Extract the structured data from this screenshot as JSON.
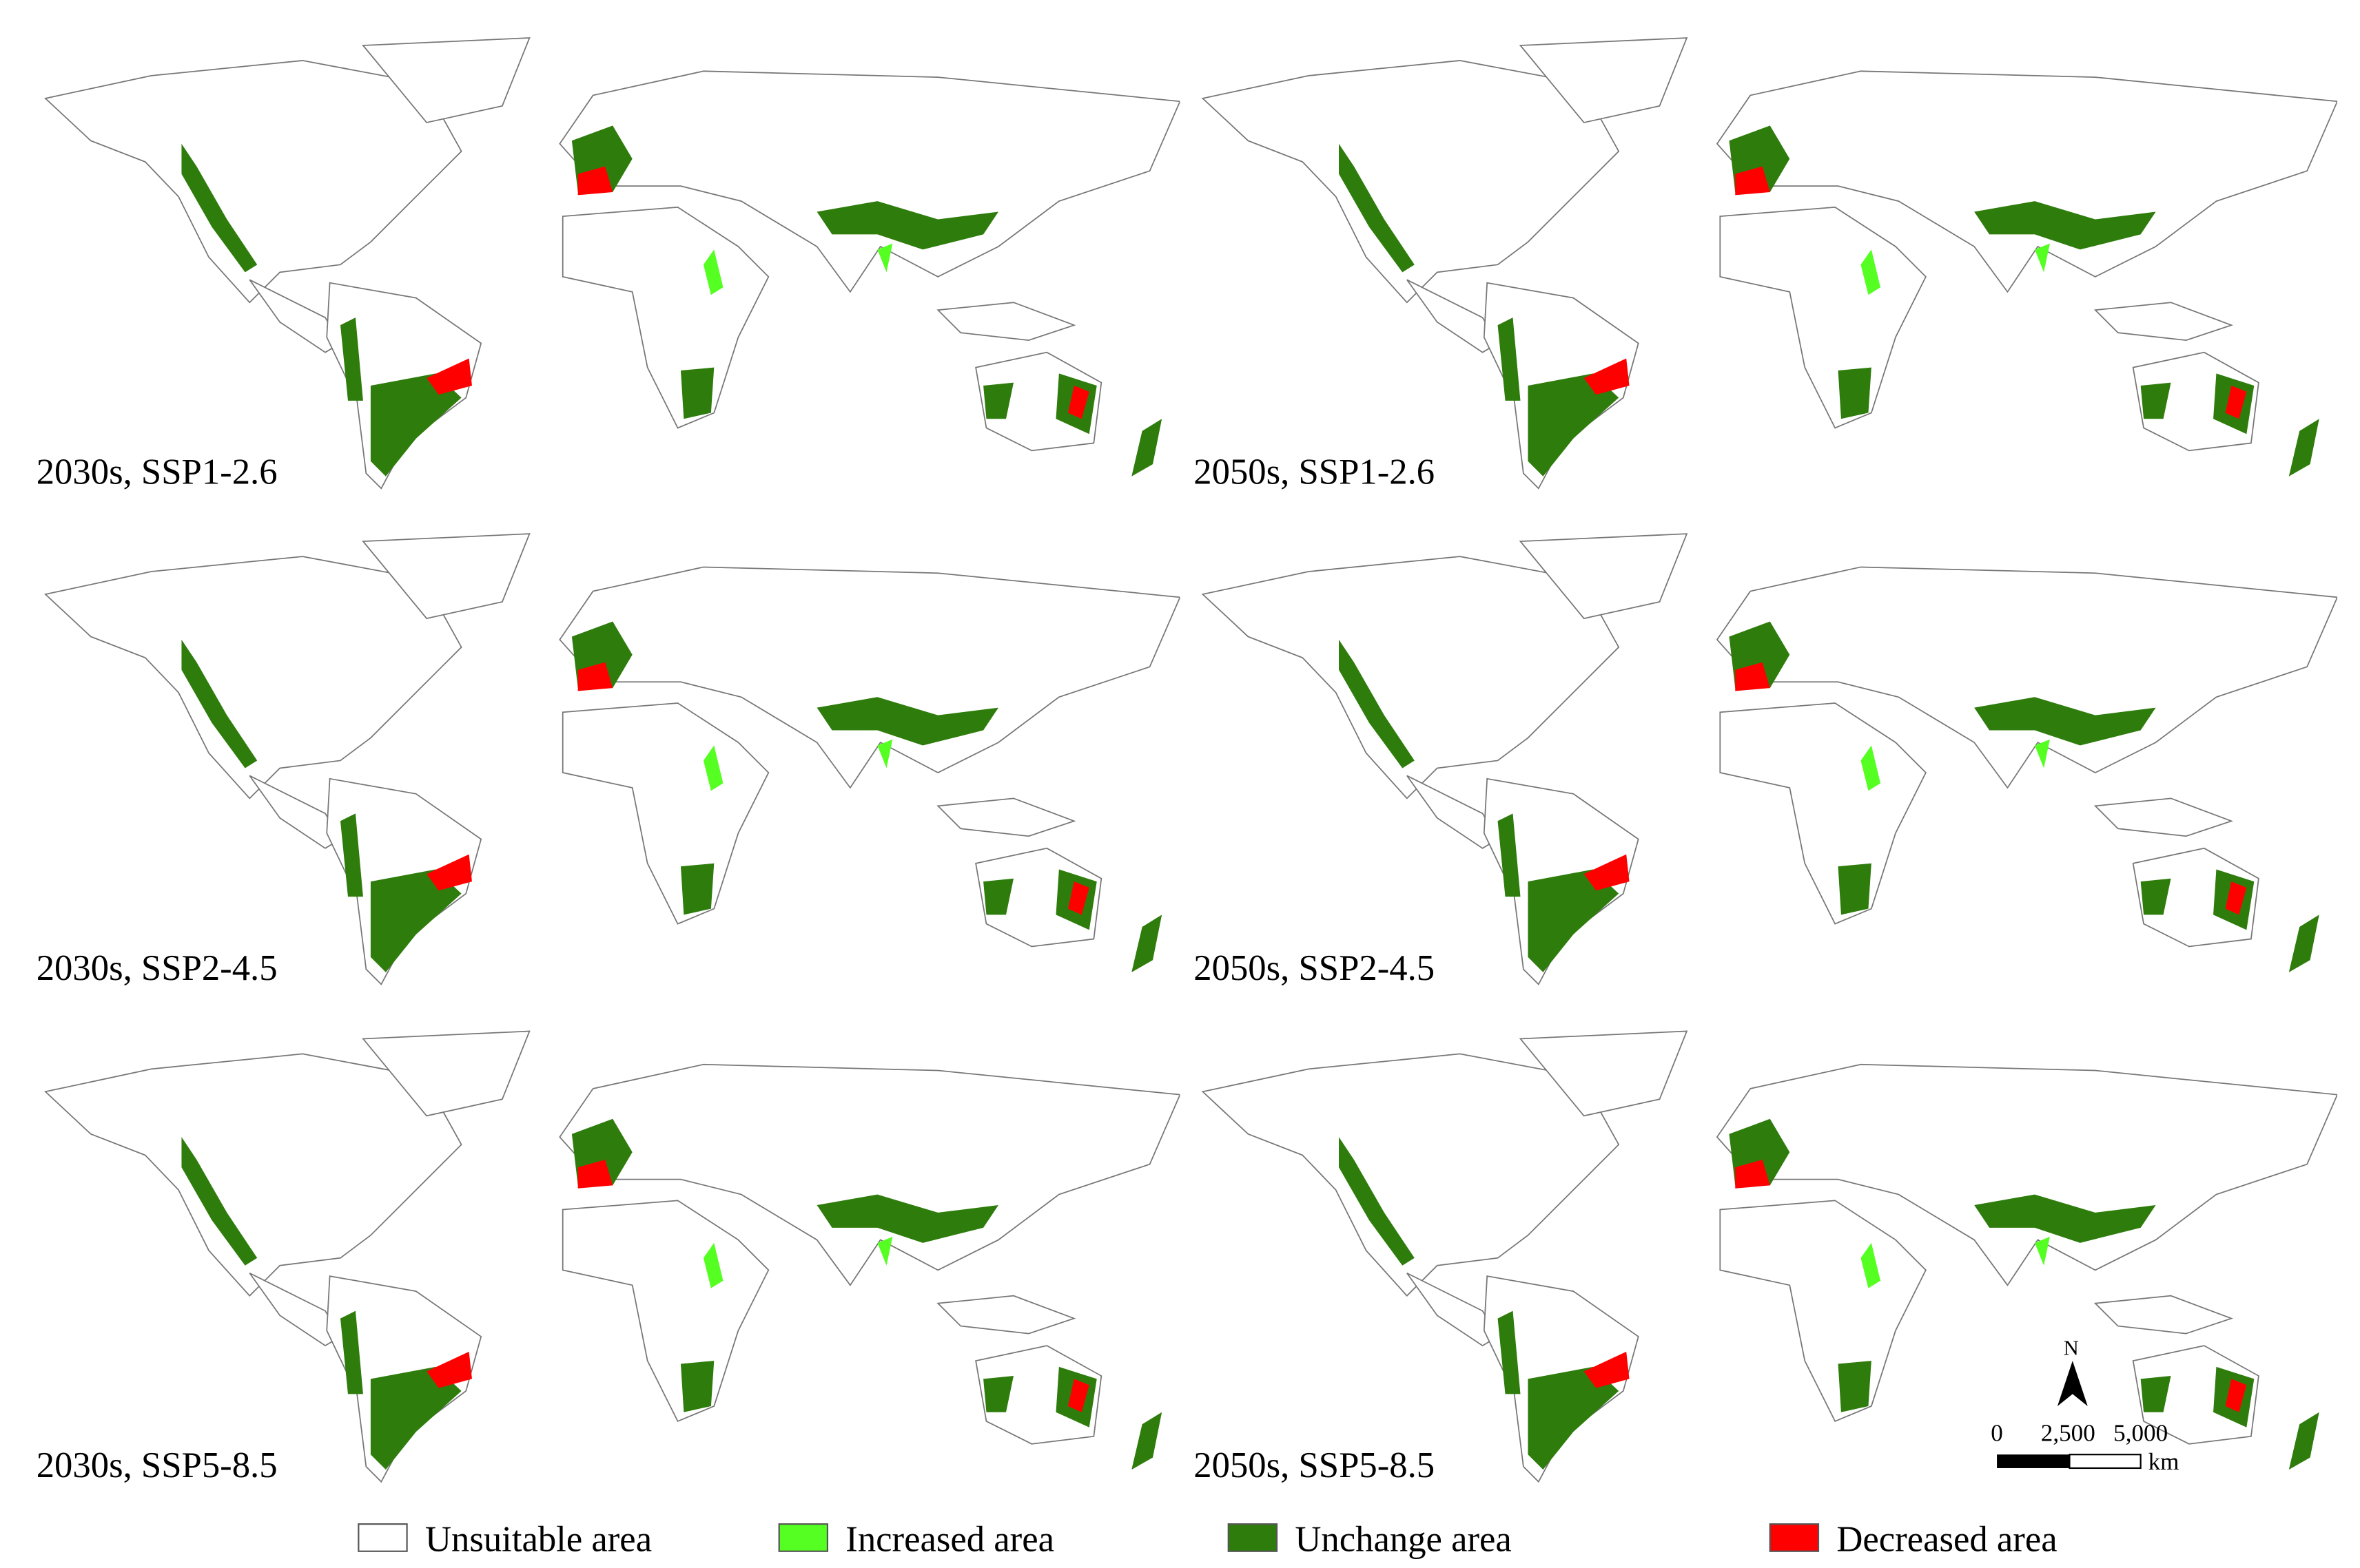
{
  "panels": [
    {
      "label": "2030s, SSP1-2.6"
    },
    {
      "label": "2050s, SSP1-2.6"
    },
    {
      "label": "2030s, SSP2-4.5"
    },
    {
      "label": "2050s, SSP2-4.5"
    },
    {
      "label": "2030s, SSP5-8.5"
    },
    {
      "label": "2050s, SSP5-8.5"
    }
  ],
  "legend": [
    {
      "label": "Unsuitable area",
      "color": "#ffffff"
    },
    {
      "label": "Increased area",
      "color": "#55ff22"
    },
    {
      "label": "Unchange area",
      "color": "#2e7d0c"
    },
    {
      "label": "Decreased area",
      "color": "#ff0000"
    }
  ],
  "scale_bar": {
    "labels": [
      "0",
      "2,500",
      "5,000"
    ],
    "unit": "km"
  },
  "north_arrow": "N"
}
